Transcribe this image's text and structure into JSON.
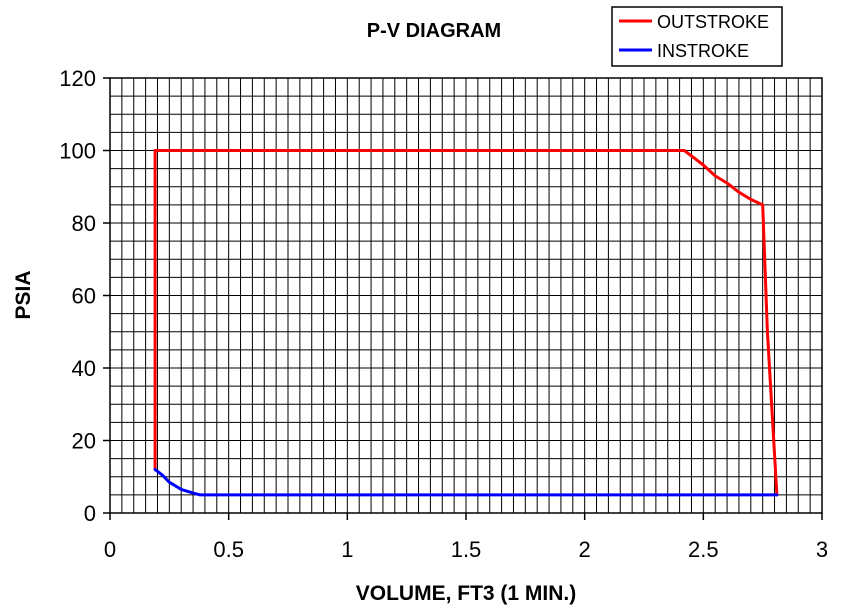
{
  "chart_data": {
    "type": "line",
    "title": "P-V DIAGRAM",
    "xlabel": "VOLUME, FT3 (1 MIN.)",
    "ylabel": "PSIA",
    "xlim": [
      0,
      3
    ],
    "ylim": [
      0,
      120
    ],
    "x_ticks": [
      0,
      0.5,
      1,
      1.5,
      2,
      2.5,
      3
    ],
    "y_ticks": [
      0,
      20,
      40,
      60,
      80,
      100,
      120
    ],
    "x_tick_labels": [
      "0",
      "0.5",
      "1",
      "1.5",
      "2",
      "2.5",
      "3"
    ],
    "y_tick_labels": [
      "0",
      "20",
      "40",
      "60",
      "80",
      "100",
      "120"
    ],
    "grid": true,
    "x_minor_step": 0.05,
    "y_minor_step": 5,
    "legend_position": "top-right",
    "series": [
      {
        "name": "OUTSTROKE",
        "color": "#ff0000",
        "points": [
          [
            0.19,
            12
          ],
          [
            0.19,
            100
          ],
          [
            2.42,
            100
          ],
          [
            2.45,
            98.5
          ],
          [
            2.5,
            96
          ],
          [
            2.55,
            93
          ],
          [
            2.6,
            91
          ],
          [
            2.65,
            88.5
          ],
          [
            2.7,
            86.5
          ],
          [
            2.75,
            85
          ],
          [
            2.77,
            50
          ],
          [
            2.81,
            5
          ]
        ]
      },
      {
        "name": "INSTROKE",
        "color": "#0000ff",
        "points": [
          [
            2.81,
            5
          ],
          [
            0.38,
            5
          ],
          [
            0.35,
            5.5
          ],
          [
            0.3,
            6.5
          ],
          [
            0.25,
            8.5
          ],
          [
            0.22,
            10.5
          ],
          [
            0.19,
            12
          ]
        ]
      }
    ]
  }
}
